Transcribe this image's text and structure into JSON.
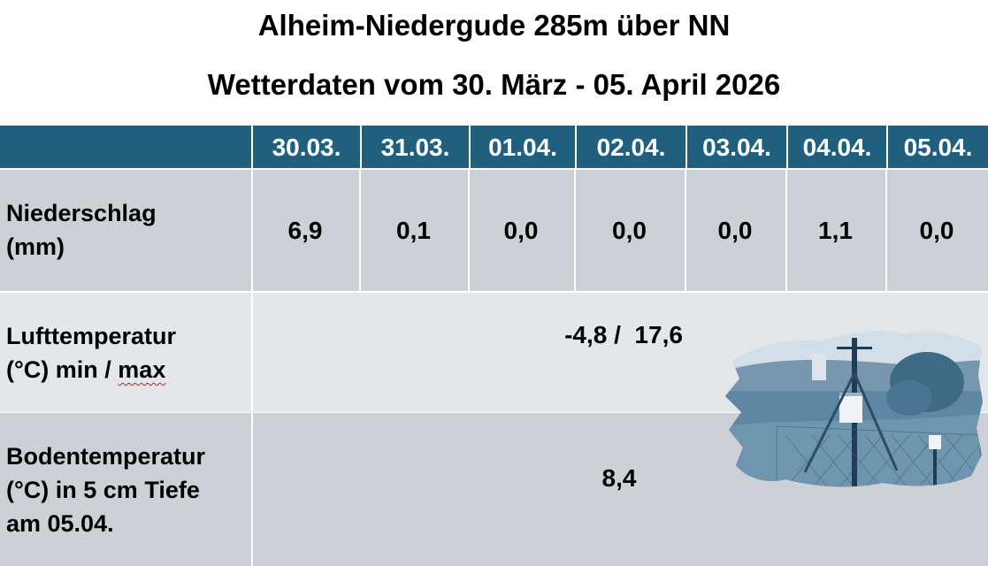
{
  "header": {
    "title": "Alheim-Niedergude 285m über NN",
    "subtitle": "Wetterdaten vom 30. März - 05. April 2026"
  },
  "table": {
    "columns": [
      "30.03.",
      "31.03.",
      "01.04.",
      "02.04.",
      "03.04.",
      "04.04.",
      "05.04."
    ],
    "rows": {
      "niederschlag": {
        "label_lines": [
          "Niederschlag",
          "(mm)"
        ],
        "values": [
          "6,9",
          "0,1",
          "0,0",
          "0,0",
          "0,0",
          "1,1",
          "0,0"
        ]
      },
      "lufttemperatur": {
        "label_lines": [
          "Lufttemperatur",
          "(°C) min / ",
          "max"
        ],
        "value": "-4,8 /  17,6"
      },
      "bodentemperatur": {
        "label_lines": [
          "Bodentemperatur",
          "(°C) in 5 cm Tiefe",
          "am 05.04."
        ],
        "value": "8,4"
      }
    }
  },
  "colors": {
    "header_bg": "#20607e",
    "row_dark": "#cdd1d5",
    "row_light": "#e4e7ea",
    "photo_tint": "#5f87a3"
  },
  "photo": {
    "icon": "weather-station-photo"
  }
}
